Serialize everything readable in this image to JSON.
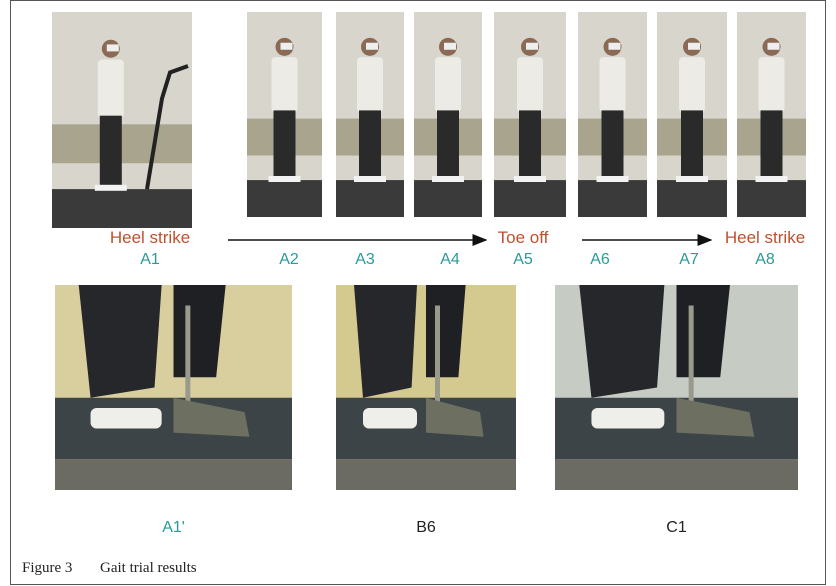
{
  "figure": {
    "top_frames": [
      {
        "phase": "Heel strike",
        "label": "A1"
      },
      {
        "label": "A2"
      },
      {
        "label": "A3"
      },
      {
        "label": "A4"
      },
      {
        "phase": "Toe off",
        "label": "A5"
      },
      {
        "label": "A6"
      },
      {
        "label": "A7"
      },
      {
        "phase": "Heel strike",
        "label": "A8"
      }
    ],
    "detail_frames": [
      {
        "label": "A1'"
      },
      {
        "label": "B6"
      },
      {
        "label": "C1"
      }
    ],
    "caption": {
      "number": "Figure 3",
      "title": "Gait trial results"
    }
  }
}
